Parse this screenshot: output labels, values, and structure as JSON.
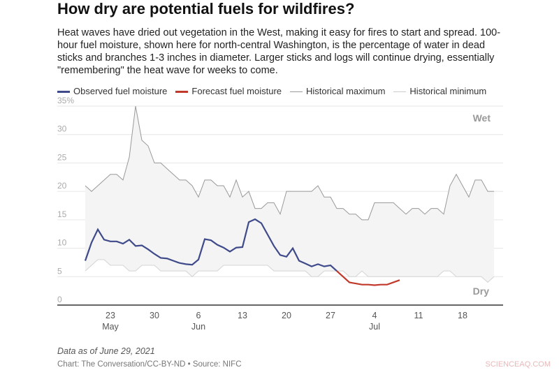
{
  "title": "How dry are potential fuels for wildfires?",
  "subtitle": "Heat waves have dried out vegetation in the West, making it easy for fires to start and spread. 100-hour fuel moisture, shown here for north-central Washington, is the percentage of water in dead sticks and branches 1-3 inches in diameter. Larger sticks and logs will continue drying, essentially \"remembering\" the heat wave for weeks to come.",
  "note": "Data as of June 29, 2021",
  "source": "Chart: The Conversation/CC-BY-ND • Source: NIFC",
  "watermark": "SCIENCEAQ.COM",
  "chart_data": {
    "type": "line",
    "ylim": [
      0,
      35
    ],
    "yticks": [
      "0",
      "5",
      "10",
      "15",
      "20",
      "25",
      "30",
      "35%"
    ],
    "xticks": [
      {
        "label": "23",
        "month": "May",
        "date": "2021-05-23"
      },
      {
        "label": "30",
        "month": "",
        "date": "2021-05-30"
      },
      {
        "label": "6",
        "month": "Jun",
        "date": "2021-06-06"
      },
      {
        "label": "13",
        "month": "",
        "date": "2021-06-13"
      },
      {
        "label": "20",
        "month": "",
        "date": "2021-06-20"
      },
      {
        "label": "27",
        "month": "",
        "date": "2021-06-27"
      },
      {
        "label": "4",
        "month": "Jul",
        "date": "2021-07-04"
      },
      {
        "label": "11",
        "month": "",
        "date": "2021-07-11"
      },
      {
        "label": "18",
        "month": "",
        "date": "2021-07-18"
      }
    ],
    "annotations": [
      "Wet",
      "Dry"
    ],
    "grid": true,
    "legend_placement": "top",
    "x_start": "2021-05-19",
    "series": [
      {
        "name": "Observed fuel moisture",
        "color": "#3f4a8a",
        "start": "2021-05-19",
        "values": [
          7.8,
          11,
          13.3,
          11.5,
          11.2,
          11.2,
          10.8,
          11.5,
          10.4,
          10.5,
          9.8,
          9,
          8.3,
          8.2,
          7.8,
          7.4,
          7.2,
          7.1,
          8,
          11.6,
          11.4,
          10.6,
          10.1,
          9.4,
          10.1,
          10.2,
          14.6,
          15.1,
          14.4,
          12.4,
          10.4,
          8.8,
          8.5,
          10,
          7.8,
          7.3,
          6.8,
          7.2,
          6.8,
          7,
          6
        ]
      },
      {
        "name": "Forecast fuel moisture",
        "color": "#c0392b",
        "start": "2021-06-28",
        "values": [
          6,
          5,
          4,
          3.8,
          3.6,
          3.6,
          3.5,
          3.6,
          3.6,
          4,
          4.4
        ]
      },
      {
        "name": "Historical maximum",
        "color": "#999999",
        "start": "2021-05-19",
        "values": [
          21,
          20,
          21,
          22,
          23,
          23,
          22,
          26,
          35,
          29,
          28,
          25,
          25,
          24,
          23,
          22,
          22,
          21,
          19,
          22,
          22,
          21,
          21,
          19,
          22,
          19,
          20,
          17,
          17,
          18,
          18,
          16,
          20,
          20,
          20,
          20,
          20,
          21,
          19,
          19,
          17,
          17,
          16,
          16,
          15,
          15,
          18,
          18,
          18,
          18,
          17,
          16,
          17,
          17,
          16,
          17,
          17,
          16,
          21,
          23,
          21,
          19,
          22,
          22,
          20,
          20
        ]
      },
      {
        "name": "Historical minimum",
        "color": "#d4d4d4",
        "start": "2021-05-19",
        "values": [
          6,
          7,
          8,
          8,
          7,
          7,
          7,
          6,
          6,
          7,
          7,
          7,
          6,
          6,
          6,
          6,
          6,
          5,
          6,
          6,
          6,
          6,
          7,
          7,
          7,
          7,
          7,
          7,
          7,
          7,
          6,
          6,
          6,
          6,
          6,
          6,
          5,
          5,
          6,
          6,
          6,
          6,
          5,
          5,
          6,
          5,
          5,
          5,
          5,
          5,
          5,
          5,
          5,
          5,
          5,
          5,
          5,
          6,
          6,
          5,
          5,
          5,
          5,
          5,
          4,
          5,
          5,
          4
        ]
      }
    ]
  }
}
